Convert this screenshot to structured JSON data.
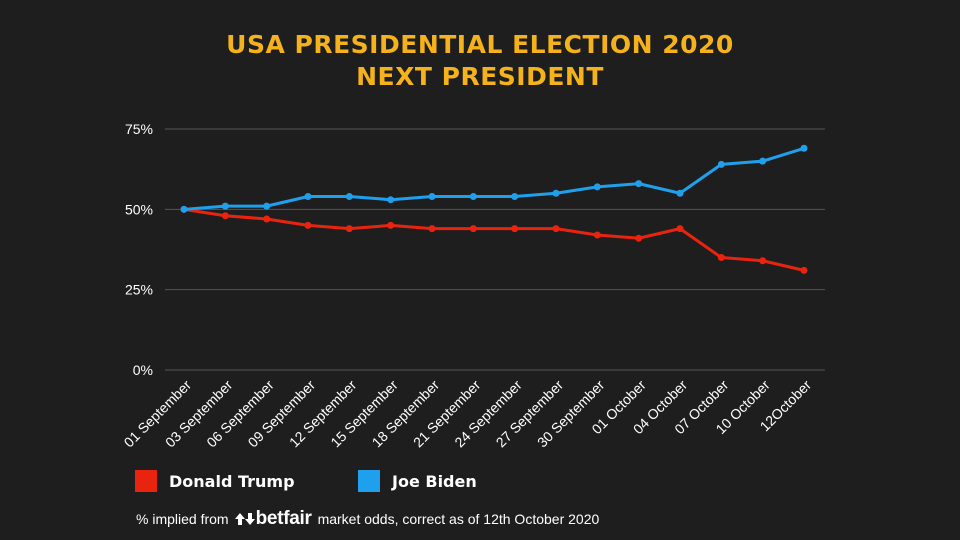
{
  "title": {
    "line1": "USA PRESIDENTIAL ELECTION 2020",
    "line2": "NEXT PRESIDENT"
  },
  "chart_data": {
    "type": "line",
    "categories": [
      "01 September",
      "03 September",
      "06 September",
      "09 September",
      "12 September",
      "15 September",
      "18 September",
      "21 September",
      "24 September",
      "27 September",
      "30 September",
      "01 October",
      "04 October",
      "07 October",
      "10 October",
      "12October"
    ],
    "series": [
      {
        "name": "Donald Trump",
        "color": "#e8240f",
        "values": [
          50,
          48,
          47,
          45,
          44,
          45,
          44,
          44,
          44,
          44,
          42,
          41,
          44,
          35,
          34,
          31
        ]
      },
      {
        "name": "Joe Biden",
        "color": "#1ea0ec",
        "values": [
          50,
          51,
          51,
          54,
          54,
          53,
          54,
          54,
          54,
          55,
          57,
          58,
          55,
          64,
          65,
          69
        ]
      }
    ],
    "yticks": [
      "0%",
      "25%",
      "50%",
      "75%"
    ],
    "ytick_values": [
      0,
      25,
      50,
      75
    ],
    "ylim": [
      0,
      75
    ],
    "grid": true,
    "legend_position": "bottom-left"
  },
  "footnote": {
    "prefix": "% implied from",
    "brand": "betfair",
    "suffix": "market odds, correct as of 12th October 2020"
  },
  "colors": {
    "background": "#1e1e1e",
    "title": "#f5b21a",
    "grid": "#555555",
    "text": "#ffffff"
  }
}
